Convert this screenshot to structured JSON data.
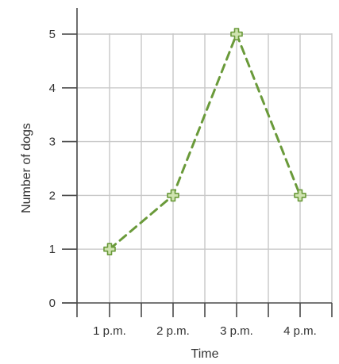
{
  "chart_data": {
    "type": "line",
    "categories": [
      "1 p.m.",
      "2 p.m.",
      "3 p.m.",
      "4 p.m."
    ],
    "values": [
      1,
      2,
      5,
      2
    ],
    "xlabel": "Time",
    "ylabel": "Number of dogs",
    "ylim": [
      0,
      5
    ],
    "yticks": [
      "0",
      "1",
      "2",
      "3",
      "4",
      "5"
    ],
    "grid": true,
    "line_style": "dashed",
    "marker": "plus",
    "colors": {
      "line": "#6a9a3a",
      "marker_fill": "#cfe3b0",
      "marker_stroke": "#6a9a3a"
    }
  }
}
